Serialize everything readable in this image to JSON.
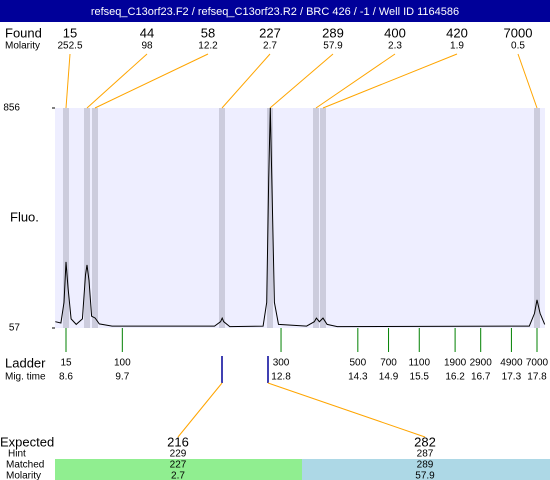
{
  "header": {
    "title": "refseq_C13orf23.F2 / refseq_C13orf23.R2 / BRC 426 / -1 / Well ID 1164586"
  },
  "found": {
    "label": "Found",
    "molarity_label": "Molarity",
    "sizes": [
      15,
      44,
      58,
      227,
      289,
      400,
      420,
      7000
    ],
    "molarity": [
      252.5,
      98,
      12.2,
      2.7,
      57.9,
      2.3,
      1.9,
      0.5
    ]
  },
  "trace": {
    "label": "Fluo.",
    "ylim": [
      57,
      856
    ],
    "yticks": [
      57,
      856
    ],
    "xlim": [
      8.385,
      17.956
    ],
    "x": [
      8.39,
      8.5,
      8.56,
      8.6,
      8.64,
      8.7,
      8.8,
      8.92,
      8.98,
      9.01,
      9.05,
      9.1,
      9.17,
      9.25,
      9.5,
      11.5,
      11.62,
      11.65,
      11.68,
      11.8,
      12.45,
      12.52,
      12.56,
      12.59,
      12.62,
      12.67,
      12.75,
      13.3,
      13.45,
      13.49,
      13.55,
      13.62,
      13.7,
      13.9,
      17.65,
      17.75,
      17.8,
      17.86,
      17.95
    ],
    "values": [
      80,
      75,
      150,
      297,
      200,
      90,
      70,
      90,
      250,
      286,
      230,
      100,
      93,
      72,
      64,
      64,
      80,
      93,
      80,
      62,
      64,
      150,
      600,
      856,
      600,
      150,
      70,
      64,
      80,
      93,
      80,
      93,
      70,
      62,
      64,
      110,
      159,
      110,
      70
    ]
  },
  "ladder": {
    "label": "Ladder",
    "time_label": "Mig. time",
    "sizes": [
      15,
      100,
      300,
      500,
      700,
      1100,
      1900,
      2900,
      4900,
      7000
    ],
    "times": [
      8.6,
      9.7,
      12.8,
      14.3,
      14.9,
      15.5,
      16.2,
      16.7,
      17.3,
      17.8
    ]
  },
  "expected": {
    "label": "Expected",
    "hint_label": "Hint",
    "matched_label": "Matched",
    "molarity_label": "Molarity",
    "expected": [
      216,
      282
    ],
    "hint": [
      229,
      287
    ],
    "matched": [
      227,
      289
    ],
    "molarity": [
      2.7,
      57.9
    ]
  }
}
